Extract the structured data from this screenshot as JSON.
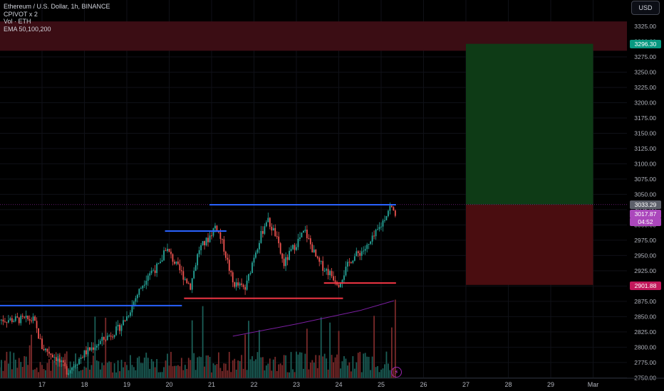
{
  "legend": {
    "symbol": "Ethereum / U.S. Dollar, 1h, BINANCE",
    "pivot": "CPIVOT x 2",
    "volume": "Vol · ETH",
    "ema": "EMA 50,100,200"
  },
  "currency_button": "USD",
  "colors": {
    "background": "#000000",
    "up": "#26a69a",
    "down": "#ef5350",
    "resistance": "#2962ff",
    "support": "#f23645",
    "ema": "#7b1fa2",
    "target_zone": "#0e3b16",
    "stop_zone": "#4a0d10"
  },
  "price_labels": {
    "target": "3296.30",
    "current": "3033.29",
    "bar_close": "3017.87",
    "countdown": "04:52",
    "stop": "2901.88"
  },
  "chart_data": {
    "type": "candlestick",
    "yaxis": {
      "ticks": [
        "3325.00",
        "3300.00",
        "3275.00",
        "3250.00",
        "3225.00",
        "3200.00",
        "3175.00",
        "3150.00",
        "3125.00",
        "3100.00",
        "3075.00",
        "3050.00",
        "3025.00",
        "3000.00",
        "2975.00",
        "2950.00",
        "2925.00",
        "2900.00",
        "2875.00",
        "2850.00",
        "2825.00",
        "2800.00",
        "2775.00",
        "2750.00"
      ],
      "range": [
        2750,
        3325
      ]
    },
    "xaxis": {
      "ticks": [
        "17",
        "18",
        "19",
        "20",
        "21",
        "22",
        "23",
        "24",
        "25",
        "26",
        "27",
        "28",
        "29",
        "Mar"
      ]
    },
    "approx_close_path": [
      {
        "day": 16.8,
        "price": 2845
      },
      {
        "day": 17.0,
        "price": 2800
      },
      {
        "day": 17.3,
        "price": 2785
      },
      {
        "day": 17.6,
        "price": 2760
      },
      {
        "day": 18.0,
        "price": 2790
      },
      {
        "day": 18.4,
        "price": 2810
      },
      {
        "day": 18.8,
        "price": 2830
      },
      {
        "day": 19.0,
        "price": 2850
      },
      {
        "day": 19.2,
        "price": 2880
      },
      {
        "day": 19.5,
        "price": 2920
      },
      {
        "day": 19.8,
        "price": 2935
      },
      {
        "day": 19.9,
        "price": 2965
      },
      {
        "day": 20.2,
        "price": 2930
      },
      {
        "day": 20.5,
        "price": 2900
      },
      {
        "day": 20.7,
        "price": 2960
      },
      {
        "day": 20.9,
        "price": 2975
      },
      {
        "day": 21.1,
        "price": 3000
      },
      {
        "day": 21.3,
        "price": 2960
      },
      {
        "day": 21.5,
        "price": 2905
      },
      {
        "day": 21.8,
        "price": 2895
      },
      {
        "day": 22.0,
        "price": 2950
      },
      {
        "day": 22.3,
        "price": 3010
      },
      {
        "day": 22.5,
        "price": 2985
      },
      {
        "day": 22.7,
        "price": 2935
      },
      {
        "day": 22.9,
        "price": 2960
      },
      {
        "day": 23.2,
        "price": 2990
      },
      {
        "day": 23.5,
        "price": 2940
      },
      {
        "day": 23.8,
        "price": 2920
      },
      {
        "day": 24.0,
        "price": 2905
      },
      {
        "day": 24.3,
        "price": 2945
      },
      {
        "day": 24.7,
        "price": 2965
      },
      {
        "day": 25.0,
        "price": 3000
      },
      {
        "day": 25.2,
        "price": 3030
      },
      {
        "day": 25.35,
        "price": 3018
      }
    ],
    "pivot_levels": [
      {
        "role": "resistance",
        "price": 3033
      },
      {
        "role": "resistance",
        "price": 2990
      },
      {
        "role": "resistance",
        "price": 2868
      },
      {
        "role": "support",
        "price": 2905
      },
      {
        "role": "support",
        "price": 2880
      }
    ],
    "ema_values": [
      {
        "day": 21.5,
        "price": 2818
      },
      {
        "day": 23.0,
        "price": 2838
      },
      {
        "day": 24.5,
        "price": 2860
      },
      {
        "day": 25.3,
        "price": 2876
      }
    ],
    "position": {
      "entry": 3033.29,
      "target": 3296.3,
      "stop": 2901.88,
      "start_day": 27,
      "end_day": 30,
      "resistance_band": [
        3285,
        3333
      ]
    }
  }
}
